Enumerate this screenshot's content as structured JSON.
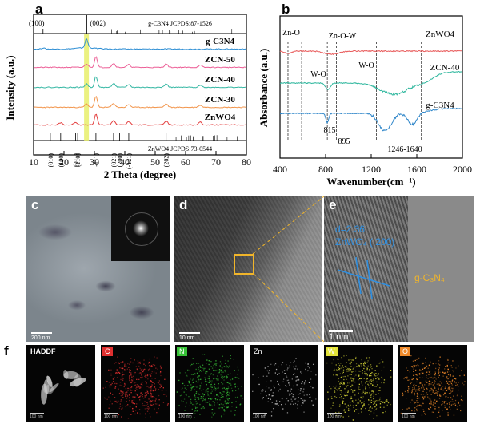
{
  "chart_data": [
    {
      "panel": "a",
      "type": "line",
      "xlabel": "2 Theta (degree)",
      "ylabel": "Intensity (a.u.)",
      "xlim": [
        10,
        80
      ],
      "xticks": [
        "10",
        "20",
        "30",
        "40",
        "50",
        "60",
        "70",
        "80"
      ],
      "reference_top": {
        "label": "g-C3N4 JCPDS:87-1526",
        "peaks": [
          {
            "x": 13.1,
            "label": "(100)"
          },
          {
            "x": 27.4,
            "label": "(002)"
          }
        ]
      },
      "reference_bottom": {
        "label": "ZnWO4 JCPDS:73-0544",
        "peaks": [
          {
            "x": 15.5,
            "label": "(010)"
          },
          {
            "x": 18.9,
            "label": "(100)"
          },
          {
            "x": 23.8,
            "label": "(011)"
          },
          {
            "x": 24.5,
            "label": "(110)"
          },
          {
            "x": 30.5,
            "label": "-111)"
          },
          {
            "x": 36.3,
            "label": "(021)"
          },
          {
            "x": 38.3,
            "label": "(200)"
          },
          {
            "x": 41.3,
            "label": "(-121)"
          },
          {
            "x": 53.6,
            "label": "(202)"
          }
        ]
      },
      "highlight": {
        "x": 27.4,
        "color": "#e8ef6a"
      },
      "series": [
        {
          "name": "g-C3N4",
          "color": "#2d8ed4",
          "peaks": [
            {
              "x": 13.1,
              "h": 0.1
            },
            {
              "x": 27.4,
              "h": 0.8
            }
          ]
        },
        {
          "name": "ZCN-50",
          "color": "#ec5e96",
          "peaks": [
            {
              "x": 27.4,
              "h": 0.3
            },
            {
              "x": 30.5,
              "h": 1.0
            },
            {
              "x": 36.3,
              "h": 0.35
            },
            {
              "x": 41.3,
              "h": 0.25
            },
            {
              "x": 53.6,
              "h": 0.3
            },
            {
              "x": 64.8,
              "h": 0.2
            }
          ]
        },
        {
          "name": "ZCN-40",
          "color": "#34b7a3",
          "peaks": [
            {
              "x": 27.4,
              "h": 0.3
            },
            {
              "x": 30.5,
              "h": 1.0
            },
            {
              "x": 36.3,
              "h": 0.35
            },
            {
              "x": 41.3,
              "h": 0.25
            },
            {
              "x": 53.6,
              "h": 0.3
            },
            {
              "x": 64.8,
              "h": 0.2
            }
          ]
        },
        {
          "name": "ZCN-30",
          "color": "#f2944a",
          "peaks": [
            {
              "x": 27.4,
              "h": 0.3
            },
            {
              "x": 30.5,
              "h": 1.0
            },
            {
              "x": 36.3,
              "h": 0.35
            },
            {
              "x": 41.3,
              "h": 0.25
            },
            {
              "x": 53.6,
              "h": 0.3
            },
            {
              "x": 64.8,
              "h": 0.2
            }
          ]
        },
        {
          "name": "ZnWO4",
          "color": "#e33f3f",
          "peaks": [
            {
              "x": 18.9,
              "h": 0.2
            },
            {
              "x": 23.8,
              "h": 0.25
            },
            {
              "x": 30.5,
              "h": 1.0
            },
            {
              "x": 36.3,
              "h": 0.4
            },
            {
              "x": 41.3,
              "h": 0.3
            },
            {
              "x": 53.6,
              "h": 0.35
            },
            {
              "x": 64.8,
              "h": 0.25
            }
          ]
        }
      ]
    },
    {
      "panel": "b",
      "type": "line",
      "xlabel": "Wavenumber(cm⁻¹)",
      "ylabel": "Absorbance (a.u.)",
      "xlim": [
        400,
        2000
      ],
      "xticks": [
        "400",
        "800",
        "1200",
        "1600",
        "2000"
      ],
      "series": [
        {
          "name": "ZnWO4",
          "color": "#e85a5a"
        },
        {
          "name": "ZCN-40",
          "color": "#2fb79e"
        },
        {
          "name": "g-C3N4",
          "color": "#2f86c9"
        }
      ],
      "annotations": [
        {
          "text": "Zn-O",
          "x": 470
        },
        {
          "text": "W-O",
          "x": 590
        },
        {
          "text": "Zn-O-W",
          "x": 880
        },
        {
          "text": "W-O",
          "x": 920
        },
        {
          "text": "815",
          "x": 815
        },
        {
          "text": "895",
          "x": 895
        },
        {
          "text": "1246-1640",
          "x": 1443
        }
      ],
      "dashed_lines_x": [
        470,
        590,
        815,
        895,
        1246,
        1640
      ]
    }
  ],
  "panels": {
    "c": {
      "letter": "c",
      "scale": "200 nm"
    },
    "d": {
      "letter": "d",
      "scale": "10 nm"
    },
    "e": {
      "letter": "e",
      "d_spacing": "d=2.36",
      "plane": "ZnWO₄ ( 200)",
      "phase": "g-C₃N₄",
      "scale": "1 nm"
    },
    "f": {
      "letter": "f",
      "maps": [
        {
          "label": "HADDF",
          "color": "#ffffff",
          "scale": "100 nm"
        },
        {
          "label": "C",
          "color": "#e03030",
          "scale": "100 nm"
        },
        {
          "label": "N",
          "color": "#38c238",
          "scale": "100 nm"
        },
        {
          "label": "Zn",
          "color": "#d8d8d8",
          "scale": "100 nm"
        },
        {
          "label": "W",
          "color": "#e4e43a",
          "scale": "100 nm"
        },
        {
          "label": "O",
          "color": "#f08a2a",
          "scale": "100 nm"
        }
      ]
    }
  }
}
